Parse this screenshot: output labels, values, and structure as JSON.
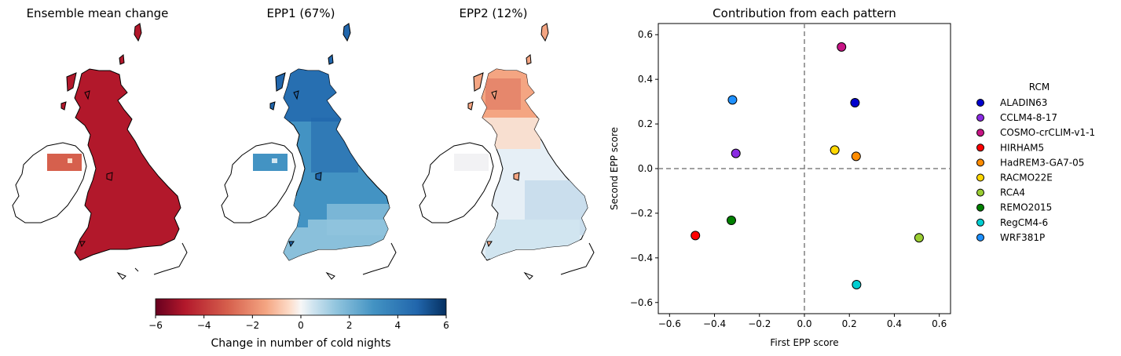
{
  "maps": [
    {
      "title": "Ensemble mean change",
      "scheme": "mean"
    },
    {
      "title": "EPP1 (67%)",
      "scheme": "epp1"
    },
    {
      "title": "EPP2 (12%)",
      "scheme": "epp2"
    }
  ],
  "colorbar": {
    "label": "Change in number of cold nights",
    "ticks": [
      "−6",
      "−4",
      "−2",
      "0",
      "2",
      "4",
      "6"
    ],
    "range": [
      -6,
      6
    ]
  },
  "chart_data": {
    "type": "scatter",
    "title": "Contribution from each pattern",
    "xlabel": "First EPP score",
    "ylabel": "Second EPP score",
    "xlim": [
      -0.65,
      0.65
    ],
    "ylim": [
      -0.65,
      0.65
    ],
    "xticks": [
      "−0.6",
      "−0.4",
      "−0.2",
      "0.0",
      "0.2",
      "0.4",
      "0.6"
    ],
    "yticks": [
      "−0.6",
      "−0.4",
      "−0.2",
      "0.0",
      "0.2",
      "0.4",
      "0.6"
    ],
    "reference_lines": {
      "x": 0,
      "y": 0,
      "style": "dashed"
    },
    "legend_title": "RCM",
    "legend_position": "outside-right",
    "series": [
      {
        "name": "ALADIN63",
        "x": 0.225,
        "y": 0.295,
        "color": "#0000cd"
      },
      {
        "name": "CCLM4-8-17",
        "x": -0.305,
        "y": 0.068,
        "color": "#8a2be2"
      },
      {
        "name": "COSMO-crCLIM-v1-1",
        "x": 0.165,
        "y": 0.545,
        "color": "#c71585"
      },
      {
        "name": "HIRHAM5",
        "x": -0.485,
        "y": -0.3,
        "color": "#ff0000"
      },
      {
        "name": "HadREM3-GA7-05",
        "x": 0.23,
        "y": 0.055,
        "color": "#ff8c00"
      },
      {
        "name": "RACMO22E",
        "x": 0.135,
        "y": 0.083,
        "color": "#ffd700"
      },
      {
        "name": "RCA4",
        "x": 0.51,
        "y": -0.31,
        "color": "#9acd32"
      },
      {
        "name": "REMO2015",
        "x": -0.325,
        "y": -0.232,
        "color": "#008000"
      },
      {
        "name": "RegCM4-6",
        "x": 0.232,
        "y": -0.52,
        "color": "#00ced1"
      },
      {
        "name": "WRF381P",
        "x": -0.32,
        "y": 0.308,
        "color": "#1e90ff"
      }
    ]
  }
}
